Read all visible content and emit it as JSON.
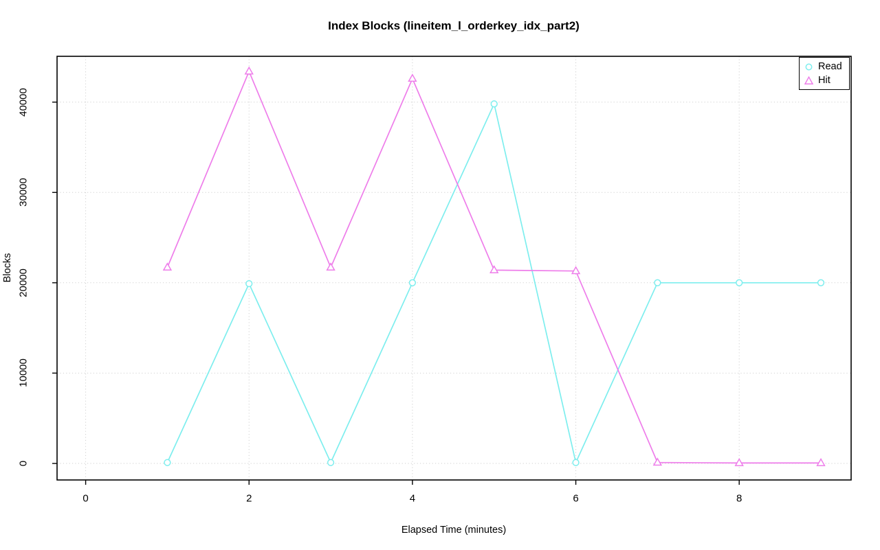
{
  "title": "Index Blocks (lineitem_l_orderkey_idx_part2)",
  "chart_data": {
    "type": "line",
    "title": "Index Blocks (lineitem_l_orderkey_idx_part2)",
    "xlabel": "Elapsed Time (minutes)",
    "ylabel": "Blocks",
    "x": [
      1,
      2,
      3,
      4,
      5,
      6,
      7,
      8,
      9
    ],
    "series": [
      {
        "name": "Read",
        "marker": "circle",
        "color": "#7deeee",
        "values": [
          100,
          19900,
          100,
          20000,
          39800,
          100,
          20000,
          20000,
          20000
        ]
      },
      {
        "name": "Hit",
        "marker": "triangle",
        "color": "#ee7dea",
        "values": [
          21700,
          43400,
          21700,
          42600,
          21400,
          21300,
          100,
          50,
          50
        ]
      }
    ],
    "xticks": [
      0,
      2,
      4,
      6,
      8
    ],
    "xtick_labels": [
      "0",
      "2",
      "4",
      "6",
      "8"
    ],
    "yticks": [
      0,
      10000,
      20000,
      30000,
      40000
    ],
    "ytick_labels": [
      "0",
      "10000",
      "20000",
      "30000",
      "40000"
    ],
    "xlim": [
      -0.35,
      9.37
    ],
    "ylim": [
      -1830,
      45070
    ],
    "grid": "dotted",
    "grid_color": "#cfcfcf",
    "axis_color": "#000000",
    "background": "#ffffff",
    "legend_position": "top-right",
    "legend": [
      "Read",
      "Hit"
    ]
  }
}
